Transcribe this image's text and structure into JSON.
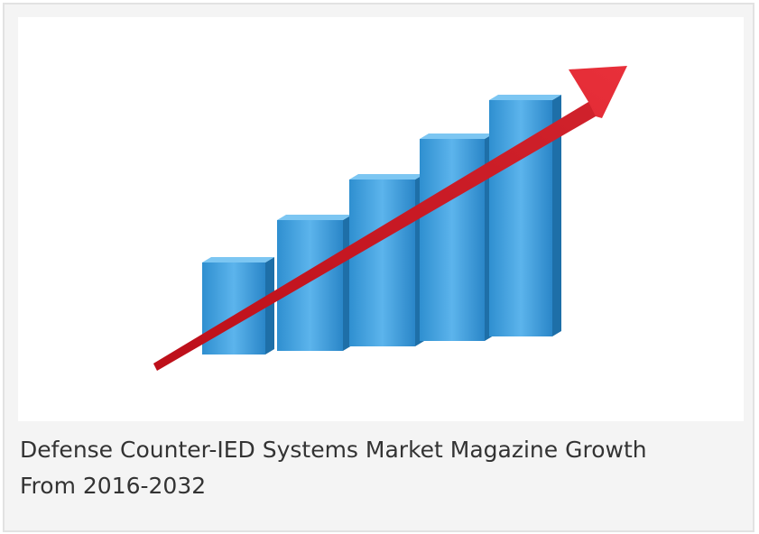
{
  "caption": "Defense Counter-IED Systems Market Magazine Growth From 2016-2032"
}
